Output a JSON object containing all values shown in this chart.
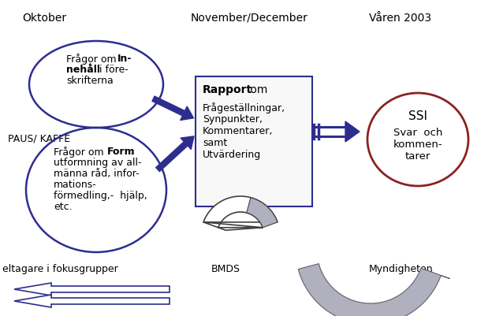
{
  "bg_color": "#ffffff",
  "title_oktober": "Oktober",
  "title_nov_dec": "November/December",
  "title_varen": "Våren 2003",
  "paus_text": "PAUS/ KAFFE",
  "rapport_title": "Rapport",
  "ssi_text": "SSI",
  "label_deltagare": "eltagare i fokusgrupper",
  "label_bmds": "BMDS",
  "label_myndigheten": "Myndigheten",
  "blue_ellipse": "#2d2d8f",
  "red_ellipse": "#8b2222",
  "arrow_blue": "#2d2d8f",
  "gray_fill": "#b0b0be",
  "gray_edge": "#606070",
  "box_border": "#2d2d8f",
  "box_face": "#f8f8f8"
}
